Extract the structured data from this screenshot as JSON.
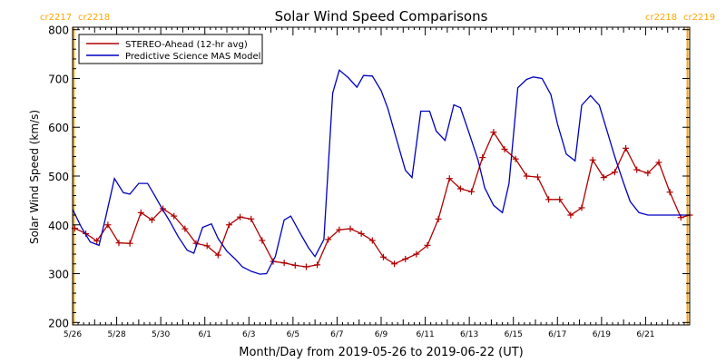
{
  "chart_data": {
    "type": "line",
    "title": "Solar Wind Speed Comparisons",
    "xlabel": "Month/Day from 2019-05-26 to 2019-06-22 (UT)",
    "ylabel": "Solar Wind Speed (km/s)",
    "ylim": [
      195,
      805
    ],
    "xlim_days": [
      0,
      28
    ],
    "x_ticks": [
      {
        "label": "5/26",
        "day": 0
      },
      {
        "label": "5/28",
        "day": 2
      },
      {
        "label": "5/30",
        "day": 4
      },
      {
        "label": "6/1",
        "day": 6
      },
      {
        "label": "6/3",
        "day": 8
      },
      {
        "label": "6/5",
        "day": 10
      },
      {
        "label": "6/7",
        "day": 12
      },
      {
        "label": "6/9",
        "day": 14
      },
      {
        "label": "6/11",
        "day": 16
      },
      {
        "label": "6/13",
        "day": 18
      },
      {
        "label": "6/15",
        "day": 20
      },
      {
        "label": "6/17",
        "day": 22
      },
      {
        "label": "6/19",
        "day": 24
      },
      {
        "label": "6/21",
        "day": 26
      }
    ],
    "y_ticks": [
      200,
      300,
      400,
      500,
      600,
      700,
      800
    ],
    "legend": "top-left",
    "carrington_markers": [
      {
        "day": 0.05,
        "label_left": "cr2217",
        "label_right": "cr2218",
        "side": "left"
      },
      {
        "day": 27.9,
        "label_left": "cr2218",
        "label_right": "cr2219",
        "side": "right"
      }
    ],
    "marker_color": "#ffa500",
    "series": [
      {
        "name": "STEREO-Ahead (12-hr avg)",
        "color": "#b00000",
        "marker": "plus",
        "x": [
          0.1,
          0.6,
          1.1,
          1.6,
          2.1,
          2.6,
          3.1,
          3.6,
          4.1,
          4.6,
          5.1,
          5.6,
          6.1,
          6.6,
          7.1,
          7.6,
          8.1,
          8.6,
          9.1,
          9.6,
          10.1,
          10.6,
          11.1,
          11.6,
          12.1,
          12.6,
          13.1,
          13.6,
          14.1,
          14.6,
          15.1,
          15.6,
          16.1,
          16.6,
          17.1,
          17.6,
          18.1,
          18.6,
          19.1,
          19.6,
          20.1,
          20.6,
          21.1,
          21.6,
          22.1,
          22.6,
          23.1,
          23.6,
          24.1,
          24.6,
          25.1,
          25.6,
          26.1,
          26.6,
          27.1,
          27.6,
          28.0
        ],
        "values": [
          393,
          382,
          367,
          400,
          363,
          362,
          425,
          410,
          433,
          418,
          392,
          362,
          357,
          338,
          400,
          416,
          412,
          368,
          325,
          322,
          317,
          314,
          318,
          370,
          390,
          392,
          382,
          368,
          334,
          320,
          330,
          340,
          358,
          412,
          495,
          474,
          468,
          538,
          590,
          555,
          535,
          500,
          498,
          452,
          452,
          420,
          435,
          533,
          497,
          508,
          557,
          513,
          506,
          528,
          467,
          415,
          420
        ]
      },
      {
        "name": "Predictive Science MAS Model",
        "color": "#0000c0",
        "x": [
          0.0,
          0.4,
          0.8,
          1.2,
          1.5,
          1.9,
          2.3,
          2.6,
          3.0,
          3.4,
          3.7,
          4.1,
          4.4,
          4.8,
          5.2,
          5.5,
          5.9,
          6.3,
          6.6,
          7.0,
          7.4,
          7.7,
          8.1,
          8.5,
          8.8,
          9.2,
          9.6,
          9.9,
          10.3,
          10.7,
          11.0,
          11.4,
          11.8,
          12.1,
          12.5,
          12.9,
          13.2,
          13.6,
          14.0,
          14.3,
          14.7,
          15.1,
          15.4,
          15.8,
          16.2,
          16.5,
          16.9,
          17.3,
          17.6,
          18.0,
          18.4,
          18.7,
          19.1,
          19.5,
          19.8,
          20.2,
          20.6,
          20.9,
          21.3,
          21.7,
          22.0,
          22.4,
          22.8,
          23.1,
          23.5,
          23.9,
          24.2,
          24.6,
          25.0,
          25.3,
          25.7,
          26.1,
          26.4,
          26.8,
          27.2,
          27.5,
          27.9,
          28.0
        ],
        "values": [
          432,
          395,
          365,
          358,
          415,
          495,
          466,
          463,
          485,
          485,
          462,
          430,
          408,
          375,
          348,
          342,
          395,
          402,
          372,
          346,
          329,
          314,
          305,
          299,
          300,
          335,
          410,
          418,
          385,
          353,
          335,
          370,
          670,
          717,
          702,
          682,
          706,
          705,
          675,
          639,
          575,
          512,
          497,
          633,
          633,
          592,
          573,
          646,
          640,
          587,
          532,
          476,
          440,
          425,
          485,
          681,
          698,
          703,
          700,
          667,
          607,
          545,
          531,
          645,
          665,
          645,
          600,
          540,
          486,
          448,
          425,
          420,
          420,
          420,
          420,
          420,
          420,
          420
        ]
      }
    ]
  }
}
